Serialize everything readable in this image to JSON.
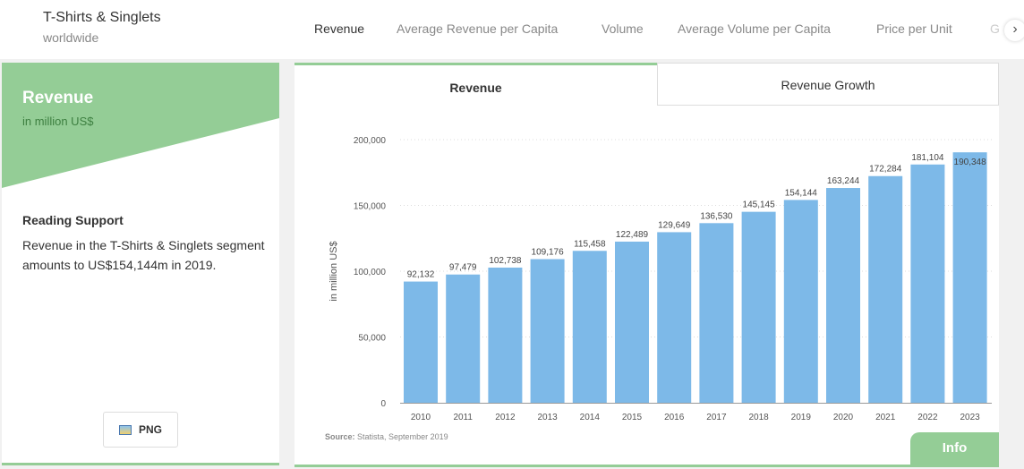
{
  "header": {
    "title": "T-Shirts & Singlets",
    "subtitle": "worldwide",
    "nav": [
      "Revenue",
      "Average Revenue per Capita",
      "Volume",
      "Average Volume per Capita",
      "Price per Unit",
      "Global"
    ],
    "next_icon": "chevron-right-icon"
  },
  "sidebar": {
    "title": "Revenue",
    "unit": "in million US$",
    "reading_heading": "Reading Support",
    "reading_text": "Revenue in the T-Shirts & Singlets segment amounts to US$154,144m in 2019.",
    "png_label": "PNG"
  },
  "tabs": [
    "Revenue",
    "Revenue Growth"
  ],
  "info_label": "Info",
  "colors": {
    "accent": "#94cd96",
    "bar": "#7db9e8"
  },
  "chart_data": {
    "type": "bar",
    "categories": [
      "2010",
      "2011",
      "2012",
      "2013",
      "2014",
      "2015",
      "2016",
      "2017",
      "2018",
      "2019",
      "2020",
      "2021",
      "2022",
      "2023"
    ],
    "values": [
      92132,
      97479,
      102738,
      109176,
      115458,
      122489,
      129649,
      136530,
      145145,
      154144,
      163244,
      172284,
      181104,
      190348
    ],
    "labels": [
      "92,132",
      "97,479",
      "102,738",
      "109,176",
      "115,458",
      "122,489",
      "129,649",
      "136,530",
      "145,145",
      "154,144",
      "163,244",
      "172,284",
      "181,104",
      "190,348"
    ],
    "ylabel": "in million US$",
    "ylim": [
      0,
      200000
    ],
    "yticks": [
      "0",
      "50,000",
      "100,000",
      "150,000",
      "200,000"
    ],
    "grid": true,
    "source_label": "Source:",
    "source_text": "Statista, September 2019"
  }
}
